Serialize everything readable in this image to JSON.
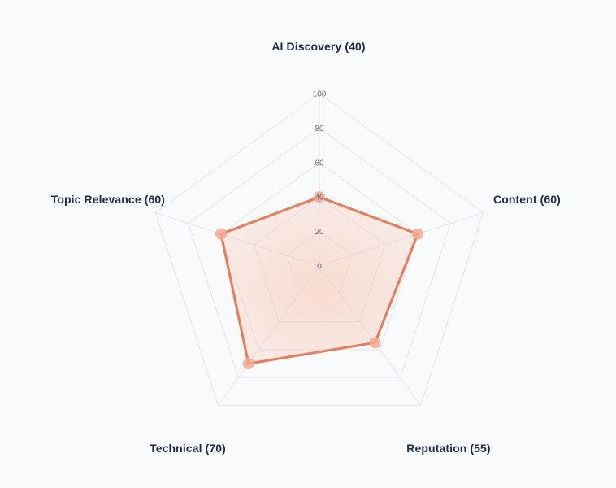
{
  "chart_data": {
    "type": "radar",
    "axes": [
      {
        "label": "AI Discovery (40)",
        "value": 40
      },
      {
        "label": "Content (60)",
        "value": 60
      },
      {
        "label": "Reputation (55)",
        "value": 55
      },
      {
        "label": "Technical (70)",
        "value": 70
      },
      {
        "label": "Topic Relevance (60)",
        "value": 60
      }
    ],
    "range": [
      0,
      100
    ],
    "ticks": [
      "0",
      "20",
      "40",
      "60",
      "80",
      "100"
    ],
    "grid": true,
    "colors": {
      "line": "#ee7a55",
      "fill": "#f6b49a",
      "point": "#f3a98d",
      "grid": "#e4e6ec",
      "label": "#1c2b4a"
    }
  }
}
